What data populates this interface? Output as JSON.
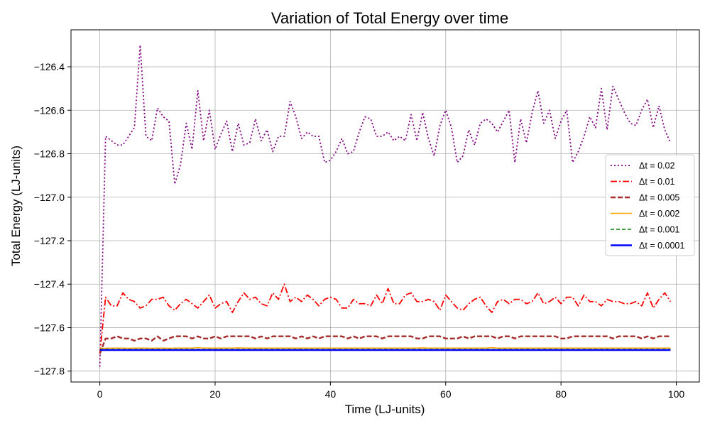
{
  "chart_data": {
    "type": "line",
    "title": "Variation of Total Energy over time",
    "xlabel": "Time (LJ-units)",
    "ylabel": "Total Energy (LJ-units)",
    "xlim": [
      -5,
      104
    ],
    "ylim": [
      -127.85,
      -126.23
    ],
    "xticks": [
      0,
      20,
      40,
      60,
      80,
      100
    ],
    "yticks": [
      -127.8,
      -127.6,
      -127.4,
      -127.2,
      -127.0,
      -126.8,
      -126.6,
      -126.4
    ],
    "xtick_labels": [
      "0",
      "20",
      "40",
      "60",
      "80",
      "100"
    ],
    "ytick_labels": [
      "−127.8",
      "−127.6",
      "−127.4",
      "−127.2",
      "−127.0",
      "−126.8",
      "−126.6",
      "−126.4"
    ],
    "grid": true,
    "legend_position": "center-right",
    "x": [
      0,
      1,
      2,
      3,
      4,
      5,
      6,
      7,
      8,
      9,
      10,
      11,
      12,
      13,
      14,
      15,
      16,
      17,
      18,
      19,
      20,
      21,
      22,
      23,
      24,
      25,
      26,
      27,
      28,
      29,
      30,
      31,
      32,
      33,
      34,
      35,
      36,
      37,
      38,
      39,
      40,
      41,
      42,
      43,
      44,
      45,
      46,
      47,
      48,
      49,
      50,
      51,
      52,
      53,
      54,
      55,
      56,
      57,
      58,
      59,
      60,
      61,
      62,
      63,
      64,
      65,
      66,
      67,
      68,
      69,
      70,
      71,
      72,
      73,
      74,
      75,
      76,
      77,
      78,
      79,
      80,
      81,
      82,
      83,
      84,
      85,
      86,
      87,
      88,
      89,
      90,
      91,
      92,
      93,
      94,
      95,
      96,
      97,
      98,
      99
    ],
    "series": [
      {
        "name": "Δt = 0.02",
        "color": "#800080",
        "dash": "2,3",
        "width": 1.8,
        "values": [
          -127.78,
          -126.72,
          -126.74,
          -126.76,
          -126.76,
          -126.72,
          -126.68,
          -126.3,
          -126.72,
          -126.74,
          -126.59,
          -126.63,
          -126.65,
          -126.94,
          -126.85,
          -126.66,
          -126.78,
          -126.51,
          -126.74,
          -126.6,
          -126.78,
          -126.71,
          -126.65,
          -126.79,
          -126.66,
          -126.76,
          -126.75,
          -126.64,
          -126.74,
          -126.69,
          -126.79,
          -126.72,
          -126.72,
          -126.56,
          -126.63,
          -126.73,
          -126.7,
          -126.72,
          -126.72,
          -126.84,
          -126.83,
          -126.79,
          -126.73,
          -126.8,
          -126.79,
          -126.7,
          -126.63,
          -126.64,
          -126.72,
          -126.72,
          -126.7,
          -126.74,
          -126.72,
          -126.74,
          -126.62,
          -126.74,
          -126.61,
          -126.73,
          -126.81,
          -126.67,
          -126.6,
          -126.68,
          -126.84,
          -126.81,
          -126.69,
          -126.76,
          -126.66,
          -126.64,
          -126.66,
          -126.7,
          -126.65,
          -126.6,
          -126.84,
          -126.64,
          -126.75,
          -126.61,
          -126.51,
          -126.66,
          -126.6,
          -126.73,
          -126.65,
          -126.6,
          -126.84,
          -126.79,
          -126.72,
          -126.63,
          -126.68,
          -126.5,
          -126.69,
          -126.49,
          -126.55,
          -126.61,
          -126.66,
          -126.67,
          -126.6,
          -126.55,
          -126.68,
          -126.58,
          -126.69,
          -126.75
        ]
      },
      {
        "name": "Δt = 0.01",
        "color": "#ff0000",
        "dash": "9,3,2,3",
        "width": 1.8,
        "values": [
          -127.72,
          -127.46,
          -127.5,
          -127.5,
          -127.44,
          -127.47,
          -127.48,
          -127.51,
          -127.5,
          -127.47,
          -127.47,
          -127.46,
          -127.5,
          -127.52,
          -127.49,
          -127.47,
          -127.49,
          -127.51,
          -127.48,
          -127.45,
          -127.51,
          -127.49,
          -127.48,
          -127.53,
          -127.48,
          -127.44,
          -127.47,
          -127.46,
          -127.49,
          -127.5,
          -127.44,
          -127.47,
          -127.4,
          -127.48,
          -127.46,
          -127.48,
          -127.45,
          -127.47,
          -127.5,
          -127.47,
          -127.46,
          -127.47,
          -127.51,
          -127.51,
          -127.47,
          -127.49,
          -127.49,
          -127.5,
          -127.45,
          -127.49,
          -127.42,
          -127.49,
          -127.49,
          -127.45,
          -127.44,
          -127.48,
          -127.48,
          -127.47,
          -127.48,
          -127.52,
          -127.45,
          -127.48,
          -127.51,
          -127.52,
          -127.49,
          -127.47,
          -127.46,
          -127.5,
          -127.53,
          -127.48,
          -127.47,
          -127.49,
          -127.47,
          -127.47,
          -127.49,
          -127.48,
          -127.44,
          -127.49,
          -127.48,
          -127.46,
          -127.49,
          -127.46,
          -127.46,
          -127.5,
          -127.45,
          -127.48,
          -127.48,
          -127.5,
          -127.47,
          -127.48,
          -127.48,
          -127.49,
          -127.49,
          -127.48,
          -127.5,
          -127.44,
          -127.51,
          -127.47,
          -127.44,
          -127.48
        ]
      },
      {
        "name": "Δt = 0.005",
        "color": "#a52a2a",
        "dash": "7,3",
        "width": 2.4,
        "values": [
          -127.72,
          -127.65,
          -127.65,
          -127.64,
          -127.65,
          -127.65,
          -127.66,
          -127.65,
          -127.65,
          -127.66,
          -127.64,
          -127.66,
          -127.65,
          -127.64,
          -127.64,
          -127.64,
          -127.65,
          -127.64,
          -127.65,
          -127.65,
          -127.64,
          -127.65,
          -127.64,
          -127.64,
          -127.64,
          -127.64,
          -127.64,
          -127.65,
          -127.64,
          -127.65,
          -127.64,
          -127.64,
          -127.64,
          -127.64,
          -127.65,
          -127.64,
          -127.65,
          -127.64,
          -127.65,
          -127.64,
          -127.64,
          -127.64,
          -127.64,
          -127.65,
          -127.64,
          -127.65,
          -127.64,
          -127.64,
          -127.64,
          -127.65,
          -127.64,
          -127.64,
          -127.64,
          -127.64,
          -127.64,
          -127.65,
          -127.65,
          -127.64,
          -127.64,
          -127.64,
          -127.65,
          -127.65,
          -127.65,
          -127.64,
          -127.65,
          -127.64,
          -127.64,
          -127.64,
          -127.64,
          -127.65,
          -127.64,
          -127.64,
          -127.65,
          -127.64,
          -127.64,
          -127.64,
          -127.64,
          -127.64,
          -127.64,
          -127.64,
          -127.65,
          -127.65,
          -127.64,
          -127.64,
          -127.64,
          -127.64,
          -127.64,
          -127.64,
          -127.64,
          -127.65,
          -127.64,
          -127.64,
          -127.64,
          -127.64,
          -127.65,
          -127.64,
          -127.65,
          -127.64,
          -127.64,
          -127.64
        ]
      },
      {
        "name": "Δt = 0.002",
        "color": "#ffa500",
        "dash": "",
        "width": 1.6,
        "values": [
          -127.695,
          -127.695,
          -127.694,
          -127.694,
          -127.694,
          -127.695,
          -127.694,
          -127.694,
          -127.694,
          -127.695,
          -127.694,
          -127.694,
          -127.695,
          -127.694,
          -127.694,
          -127.694,
          -127.694,
          -127.692,
          -127.694,
          -127.694,
          -127.694,
          -127.694,
          -127.694,
          -127.694,
          -127.693,
          -127.694,
          -127.694,
          -127.694,
          -127.694,
          -127.694,
          -127.694,
          -127.694,
          -127.694,
          -127.694,
          -127.694,
          -127.694,
          -127.694,
          -127.694,
          -127.694,
          -127.694,
          -127.694,
          -127.694,
          -127.694,
          -127.694,
          -127.694,
          -127.694,
          -127.694,
          -127.694,
          -127.694,
          -127.694,
          -127.694,
          -127.694,
          -127.694,
          -127.694,
          -127.694,
          -127.694,
          -127.693,
          -127.694,
          -127.694,
          -127.694,
          -127.694,
          -127.694,
          -127.694,
          -127.694,
          -127.694,
          -127.694,
          -127.694,
          -127.694,
          -127.692,
          -127.694,
          -127.694,
          -127.694,
          -127.694,
          -127.694,
          -127.694,
          -127.694,
          -127.694,
          -127.694,
          -127.694,
          -127.694,
          -127.694,
          -127.694,
          -127.694,
          -127.694,
          -127.694,
          -127.694,
          -127.694,
          -127.694,
          -127.694,
          -127.694,
          -127.694,
          -127.694,
          -127.694,
          -127.694,
          -127.694,
          -127.694,
          -127.694,
          -127.694,
          -127.694,
          -127.694
        ]
      },
      {
        "name": "Δt = 0.001",
        "color": "#008000",
        "dash": "5,3",
        "width": 1.6,
        "values": [
          -127.7,
          -127.7,
          -127.7,
          -127.7,
          -127.7,
          -127.7,
          -127.7,
          -127.7,
          -127.7,
          -127.7,
          -127.7,
          -127.7,
          -127.7,
          -127.7,
          -127.7,
          -127.7,
          -127.7,
          -127.7,
          -127.7,
          -127.7,
          -127.7,
          -127.7,
          -127.7,
          -127.7,
          -127.7,
          -127.7,
          -127.7,
          -127.7,
          -127.7,
          -127.7,
          -127.7,
          -127.7,
          -127.7,
          -127.7,
          -127.7,
          -127.7,
          -127.7,
          -127.7,
          -127.7,
          -127.7,
          -127.7,
          -127.7,
          -127.7,
          -127.7,
          -127.7,
          -127.7,
          -127.7,
          -127.7,
          -127.7,
          -127.7,
          -127.7,
          -127.7,
          -127.7,
          -127.7,
          -127.7,
          -127.7,
          -127.7,
          -127.7,
          -127.7,
          -127.7,
          -127.7,
          -127.7,
          -127.7,
          -127.7,
          -127.7,
          -127.7,
          -127.7,
          -127.7,
          -127.7,
          -127.7,
          -127.7,
          -127.7,
          -127.7,
          -127.7,
          -127.7,
          -127.7,
          -127.7,
          -127.7,
          -127.7,
          -127.7,
          -127.7,
          -127.7,
          -127.7,
          -127.7,
          -127.7,
          -127.7,
          -127.7,
          -127.7,
          -127.7,
          -127.7,
          -127.7,
          -127.7,
          -127.7,
          -127.7,
          -127.7,
          -127.7,
          -127.7,
          -127.7,
          -127.7,
          -127.7
        ]
      },
      {
        "name": "Δt = 0.0001",
        "color": "#0000ff",
        "dash": "",
        "width": 2.6,
        "values": [
          -127.703,
          -127.703,
          -127.703,
          -127.703,
          -127.703,
          -127.703,
          -127.703,
          -127.703,
          -127.703,
          -127.703,
          -127.703,
          -127.703,
          -127.703,
          -127.703,
          -127.703,
          -127.703,
          -127.703,
          -127.703,
          -127.703,
          -127.703,
          -127.703,
          -127.703,
          -127.703,
          -127.703,
          -127.703,
          -127.703,
          -127.703,
          -127.703,
          -127.703,
          -127.703,
          -127.703,
          -127.703,
          -127.703,
          -127.703,
          -127.703,
          -127.703,
          -127.703,
          -127.703,
          -127.703,
          -127.703,
          -127.703,
          -127.703,
          -127.703,
          -127.703,
          -127.703,
          -127.703,
          -127.703,
          -127.703,
          -127.703,
          -127.703,
          -127.703,
          -127.703,
          -127.703,
          -127.703,
          -127.703,
          -127.703,
          -127.703,
          -127.703,
          -127.703,
          -127.703,
          -127.703,
          -127.703,
          -127.703,
          -127.703,
          -127.703,
          -127.703,
          -127.703,
          -127.703,
          -127.703,
          -127.703,
          -127.703,
          -127.703,
          -127.703,
          -127.703,
          -127.703,
          -127.703,
          -127.703,
          -127.703,
          -127.703,
          -127.703,
          -127.703,
          -127.703,
          -127.703,
          -127.703,
          -127.703,
          -127.703,
          -127.703,
          -127.703,
          -127.703,
          -127.703,
          -127.703,
          -127.703,
          -127.703,
          -127.703,
          -127.703,
          -127.703,
          -127.703,
          -127.703,
          -127.703,
          -127.703
        ]
      }
    ]
  }
}
